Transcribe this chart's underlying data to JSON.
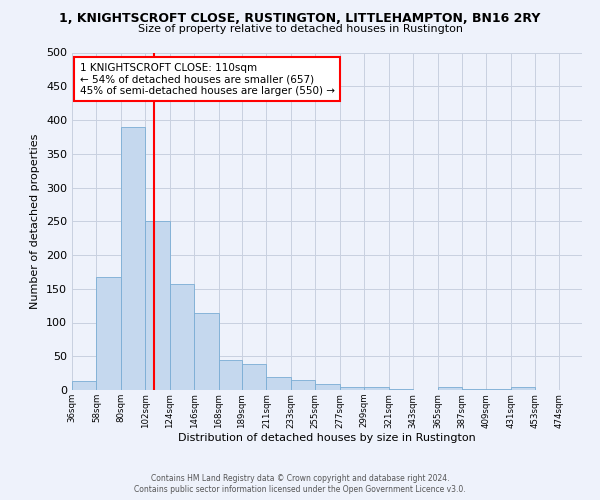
{
  "title": "1, KNIGHTSCROFT CLOSE, RUSTINGTON, LITTLEHAMPTON, BN16 2RY",
  "subtitle": "Size of property relative to detached houses in Rustington",
  "xlabel": "Distribution of detached houses by size in Rustington",
  "ylabel": "Number of detached properties",
  "bar_color": "#c5d8ee",
  "bar_edge_color": "#7aadd4",
  "background_color": "#eef2fb",
  "grid_color": "#c8d0e0",
  "vline_x": 110,
  "vline_color": "red",
  "annotation_text": "1 KNIGHTSCROFT CLOSE: 110sqm\n← 54% of detached houses are smaller (657)\n45% of semi-detached houses are larger (550) →",
  "annotation_box_color": "white",
  "annotation_box_edge_color": "red",
  "footer_line1": "Contains HM Land Registry data © Crown copyright and database right 2024.",
  "footer_line2": "Contains public sector information licensed under the Open Government Licence v3.0.",
  "bin_labels": [
    "36sqm",
    "58sqm",
    "80sqm",
    "102sqm",
    "124sqm",
    "146sqm",
    "168sqm",
    "189sqm",
    "211sqm",
    "233sqm",
    "255sqm",
    "277sqm",
    "299sqm",
    "321sqm",
    "343sqm",
    "365sqm",
    "387sqm",
    "409sqm",
    "431sqm",
    "453sqm",
    "474sqm"
  ],
  "bin_edges": [
    36,
    58,
    80,
    102,
    124,
    146,
    168,
    189,
    211,
    233,
    255,
    277,
    299,
    321,
    343,
    365,
    387,
    409,
    431,
    453,
    474
  ],
  "bar_heights": [
    14,
    168,
    390,
    250,
    157,
    114,
    44,
    39,
    19,
    15,
    9,
    5,
    4,
    2,
    0,
    5,
    1,
    1,
    4,
    0,
    0
  ],
  "ylim": [
    0,
    500
  ],
  "yticks": [
    0,
    50,
    100,
    150,
    200,
    250,
    300,
    350,
    400,
    450,
    500
  ]
}
